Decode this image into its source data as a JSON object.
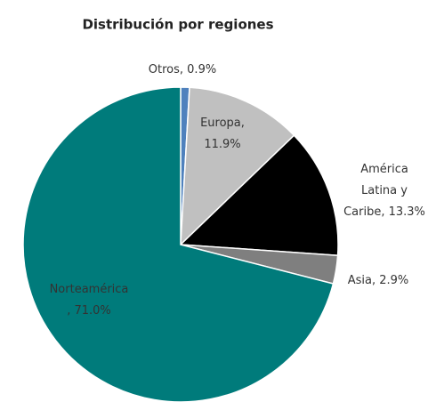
{
  "chart_data": {
    "type": "pie",
    "title": "Distribución por regiones",
    "values": [
      0.9,
      11.9,
      13.3,
      2.9,
      71.0
    ],
    "value_labels": [
      [
        "Otros, 0.9%"
      ],
      [
        "Europa,",
        "11.9%"
      ],
      [
        "América",
        "Latina y",
        "Caribe, 13.3%"
      ],
      [
        "Asia, 2.9%"
      ],
      [
        "Norteamérica",
        ", 71.0%"
      ]
    ],
    "colors": [
      "#4f81bd",
      "#c0c0c0",
      "#000000",
      "#7f7f7f",
      "#007b7b"
    ]
  }
}
